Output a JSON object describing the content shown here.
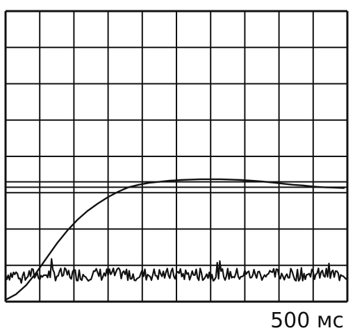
{
  "chart_data": {
    "type": "line",
    "title": "",
    "xlabel": "",
    "ylabel": "",
    "time_per_division_label": "500 мс",
    "grid": true,
    "grid_divisions": {
      "x": 10,
      "y": 8
    },
    "xlim": [
      0,
      10
    ],
    "ylim": [
      0,
      8
    ],
    "colors": {
      "background": "#ffffff",
      "grid": "#111111",
      "trace": "#111111"
    },
    "reference_lines": [
      {
        "y": 3.3
      },
      {
        "y": 3.15
      }
    ],
    "series": [
      {
        "style": "smooth",
        "x": [
          0,
          0.3,
          0.6,
          0.9,
          1.2,
          1.5,
          1.8,
          2.1,
          2.4,
          2.7,
          3.0,
          3.3,
          3.6,
          3.9,
          4.2,
          4.5,
          4.8,
          5.1,
          5.4,
          5.7,
          6.0,
          6.3,
          6.6,
          6.9,
          7.2,
          7.5,
          7.8,
          8.1,
          8.4,
          8.7,
          9.0,
          9.3,
          9.6,
          9.9
        ],
        "y": [
          0.05,
          0.2,
          0.45,
          0.8,
          1.2,
          1.6,
          1.95,
          2.25,
          2.5,
          2.7,
          2.88,
          3.03,
          3.15,
          3.22,
          3.27,
          3.3,
          3.33,
          3.35,
          3.36,
          3.37,
          3.37,
          3.37,
          3.36,
          3.35,
          3.33,
          3.31,
          3.28,
          3.25,
          3.22,
          3.2,
          3.17,
          3.15,
          3.14,
          3.13
        ]
      },
      {
        "style": "noise",
        "x": [
          0,
          10
        ],
        "y": [
          0.75,
          0.75
        ],
        "noise_amplitude": 0.18,
        "spike_amplitude": 0.35
      }
    ]
  }
}
